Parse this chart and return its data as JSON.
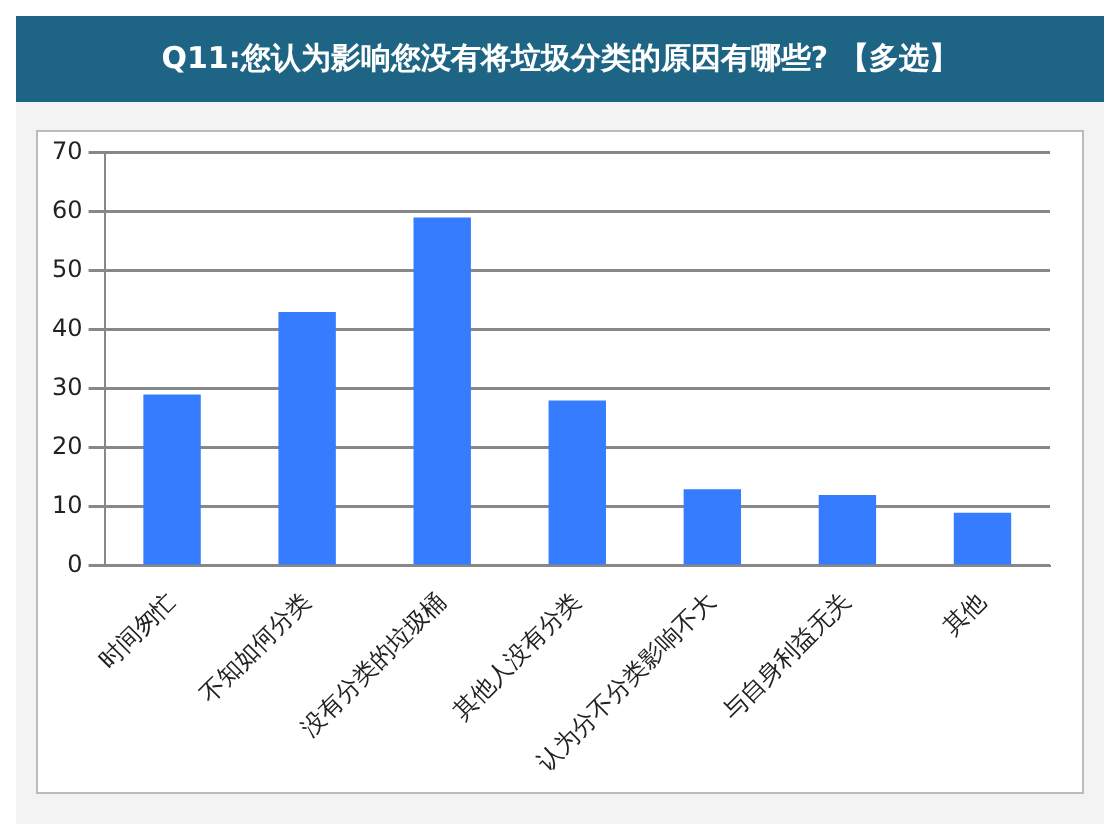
{
  "chart_data": {
    "type": "bar",
    "title": "Q11:您认为影响您没有将垃圾分类的原因有哪些? 【多选】",
    "categories": [
      "时间匆忙",
      "不知如何分类",
      "没有分类的垃圾桶",
      "其他人没有分类",
      "认为分不分类影响不大",
      "与自身利益无关",
      "其他"
    ],
    "values": [
      29,
      43,
      59,
      28,
      13,
      12,
      9
    ],
    "color": "#367cfe",
    "ylim": [
      0,
      70
    ],
    "yticks": [
      0,
      10,
      20,
      30,
      40,
      50,
      60,
      70
    ],
    "grid": "y"
  }
}
